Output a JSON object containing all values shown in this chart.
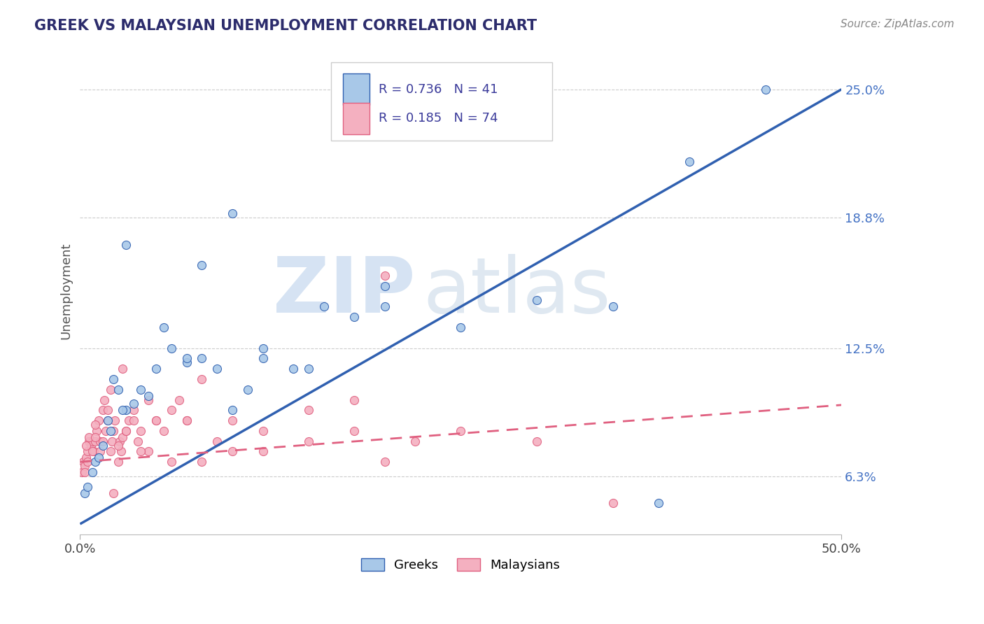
{
  "title": "GREEK VS MALAYSIAN UNEMPLOYMENT CORRELATION CHART",
  "source": "Source: ZipAtlas.com",
  "ylabel": "Unemployment",
  "xlim": [
    0.0,
    50.0
  ],
  "ylim": [
    3.5,
    27.0
  ],
  "yticks": [
    6.3,
    12.5,
    18.8,
    25.0
  ],
  "ytick_labels": [
    "6.3%",
    "12.5%",
    "18.8%",
    "25.0%"
  ],
  "greek_color": "#a8c8e8",
  "greek_line_color": "#3060b0",
  "malaysian_color": "#f4b0c0",
  "malaysian_line_color": "#e06080",
  "background_color": "#ffffff",
  "grid_color": "#cccccc",
  "watermark_zip": "ZIP",
  "watermark_atlas": "atlas",
  "greek_line_slope": 0.42,
  "greek_line_intercept": 4.0,
  "malay_line_slope": 0.055,
  "malay_line_intercept": 7.0,
  "greek_x": [
    0.3,
    0.5,
    0.8,
    1.0,
    1.2,
    1.5,
    1.8,
    2.0,
    2.5,
    3.0,
    3.5,
    4.0,
    4.5,
    5.0,
    6.0,
    7.0,
    8.0,
    9.0,
    10.0,
    11.0,
    12.0,
    14.0,
    16.0,
    18.0,
    20.0,
    25.0,
    30.0,
    35.0,
    40.0,
    45.0,
    10.0,
    8.0,
    15.0,
    38.0,
    3.0,
    2.2,
    2.8,
    5.5,
    7.0,
    20.0,
    12.0
  ],
  "greek_y": [
    5.5,
    5.8,
    6.5,
    7.0,
    7.2,
    7.8,
    9.0,
    8.5,
    10.5,
    9.5,
    9.8,
    10.5,
    10.2,
    11.5,
    12.5,
    11.8,
    12.0,
    11.5,
    9.5,
    10.5,
    12.0,
    11.5,
    14.5,
    14.0,
    14.5,
    13.5,
    14.8,
    14.5,
    21.5,
    25.0,
    19.0,
    16.5,
    11.5,
    5.0,
    17.5,
    11.0,
    9.5,
    13.5,
    12.0,
    15.5,
    12.5
  ],
  "malay_x": [
    0.1,
    0.2,
    0.3,
    0.4,
    0.5,
    0.6,
    0.7,
    0.8,
    0.9,
    1.0,
    1.1,
    1.2,
    1.3,
    1.5,
    1.6,
    1.7,
    1.8,
    2.0,
    2.1,
    2.2,
    2.3,
    2.5,
    2.6,
    2.7,
    2.8,
    3.0,
    3.2,
    3.5,
    3.8,
    4.0,
    4.5,
    5.0,
    5.5,
    6.0,
    6.5,
    7.0,
    8.0,
    9.0,
    10.0,
    12.0,
    15.0,
    18.0,
    20.0,
    0.4,
    0.6,
    0.8,
    1.0,
    1.5,
    2.0,
    2.5,
    3.0,
    0.3,
    0.5,
    1.0,
    1.3,
    1.8,
    2.2,
    2.8,
    3.5,
    4.5,
    25.0,
    30.0,
    35.0,
    8.0,
    5.0,
    6.0,
    10.0,
    18.0,
    20.0,
    4.0,
    7.0,
    12.0,
    15.0,
    22.0
  ],
  "malay_y": [
    6.5,
    7.0,
    6.8,
    7.2,
    7.5,
    8.0,
    7.8,
    8.0,
    7.5,
    8.0,
    8.5,
    9.0,
    8.0,
    9.5,
    10.0,
    8.5,
    9.0,
    7.5,
    8.0,
    8.5,
    9.0,
    7.0,
    8.0,
    7.5,
    8.2,
    8.5,
    9.0,
    9.5,
    8.0,
    8.5,
    10.0,
    9.0,
    8.5,
    9.5,
    10.0,
    9.0,
    11.0,
    8.0,
    9.0,
    8.5,
    9.5,
    10.0,
    16.0,
    7.8,
    8.2,
    7.5,
    8.8,
    8.0,
    10.5,
    7.8,
    8.5,
    6.5,
    7.0,
    8.2,
    7.5,
    9.5,
    5.5,
    11.5,
    9.0,
    7.5,
    8.5,
    8.0,
    5.0,
    7.0,
    9.0,
    7.0,
    7.5,
    8.5,
    7.0,
    7.5,
    9.0,
    7.5,
    8.0,
    8.0
  ]
}
